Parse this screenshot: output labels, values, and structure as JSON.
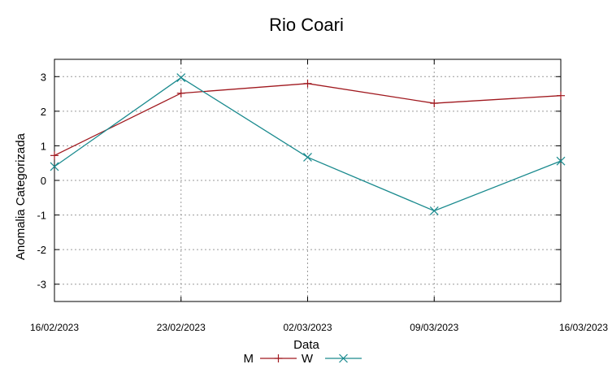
{
  "chart_data": {
    "type": "line",
    "title": "Rio Coari",
    "xlabel": "Data",
    "ylabel": "Anomalia Categorizada",
    "x_ticks": [
      "16/02/2023",
      "23/02/2023",
      "02/03/2023",
      "09/03/2023",
      "16/03/2023"
    ],
    "y_ticks": [
      "3",
      "2",
      "1",
      "0",
      "-1",
      "-2",
      "-3"
    ],
    "xlim": [
      "2023-02-16",
      "2023-03-16"
    ],
    "ylim": [
      -3.5,
      3.5
    ],
    "grid": true,
    "legend_position": "bottom",
    "series": [
      {
        "name": "M",
        "color": "#a0181e",
        "marker": "plus",
        "points": [
          {
            "x": "2023-02-16",
            "y": 0.72
          },
          {
            "x": "2023-02-23",
            "y": 2.52
          },
          {
            "x": "2023-03-02",
            "y": 2.8
          },
          {
            "x": "2023-03-09",
            "y": 2.23
          },
          {
            "x": "2023-03-16",
            "y": 2.45
          }
        ]
      },
      {
        "name": "W",
        "color": "#1a8a8e",
        "marker": "cross",
        "points": [
          {
            "x": "2023-02-16",
            "y": 0.4
          },
          {
            "x": "2023-02-23",
            "y": 2.97
          },
          {
            "x": "2023-03-02",
            "y": 0.67
          },
          {
            "x": "2023-03-09",
            "y": -0.88
          },
          {
            "x": "2023-03-16",
            "y": 0.56
          }
        ]
      }
    ]
  }
}
